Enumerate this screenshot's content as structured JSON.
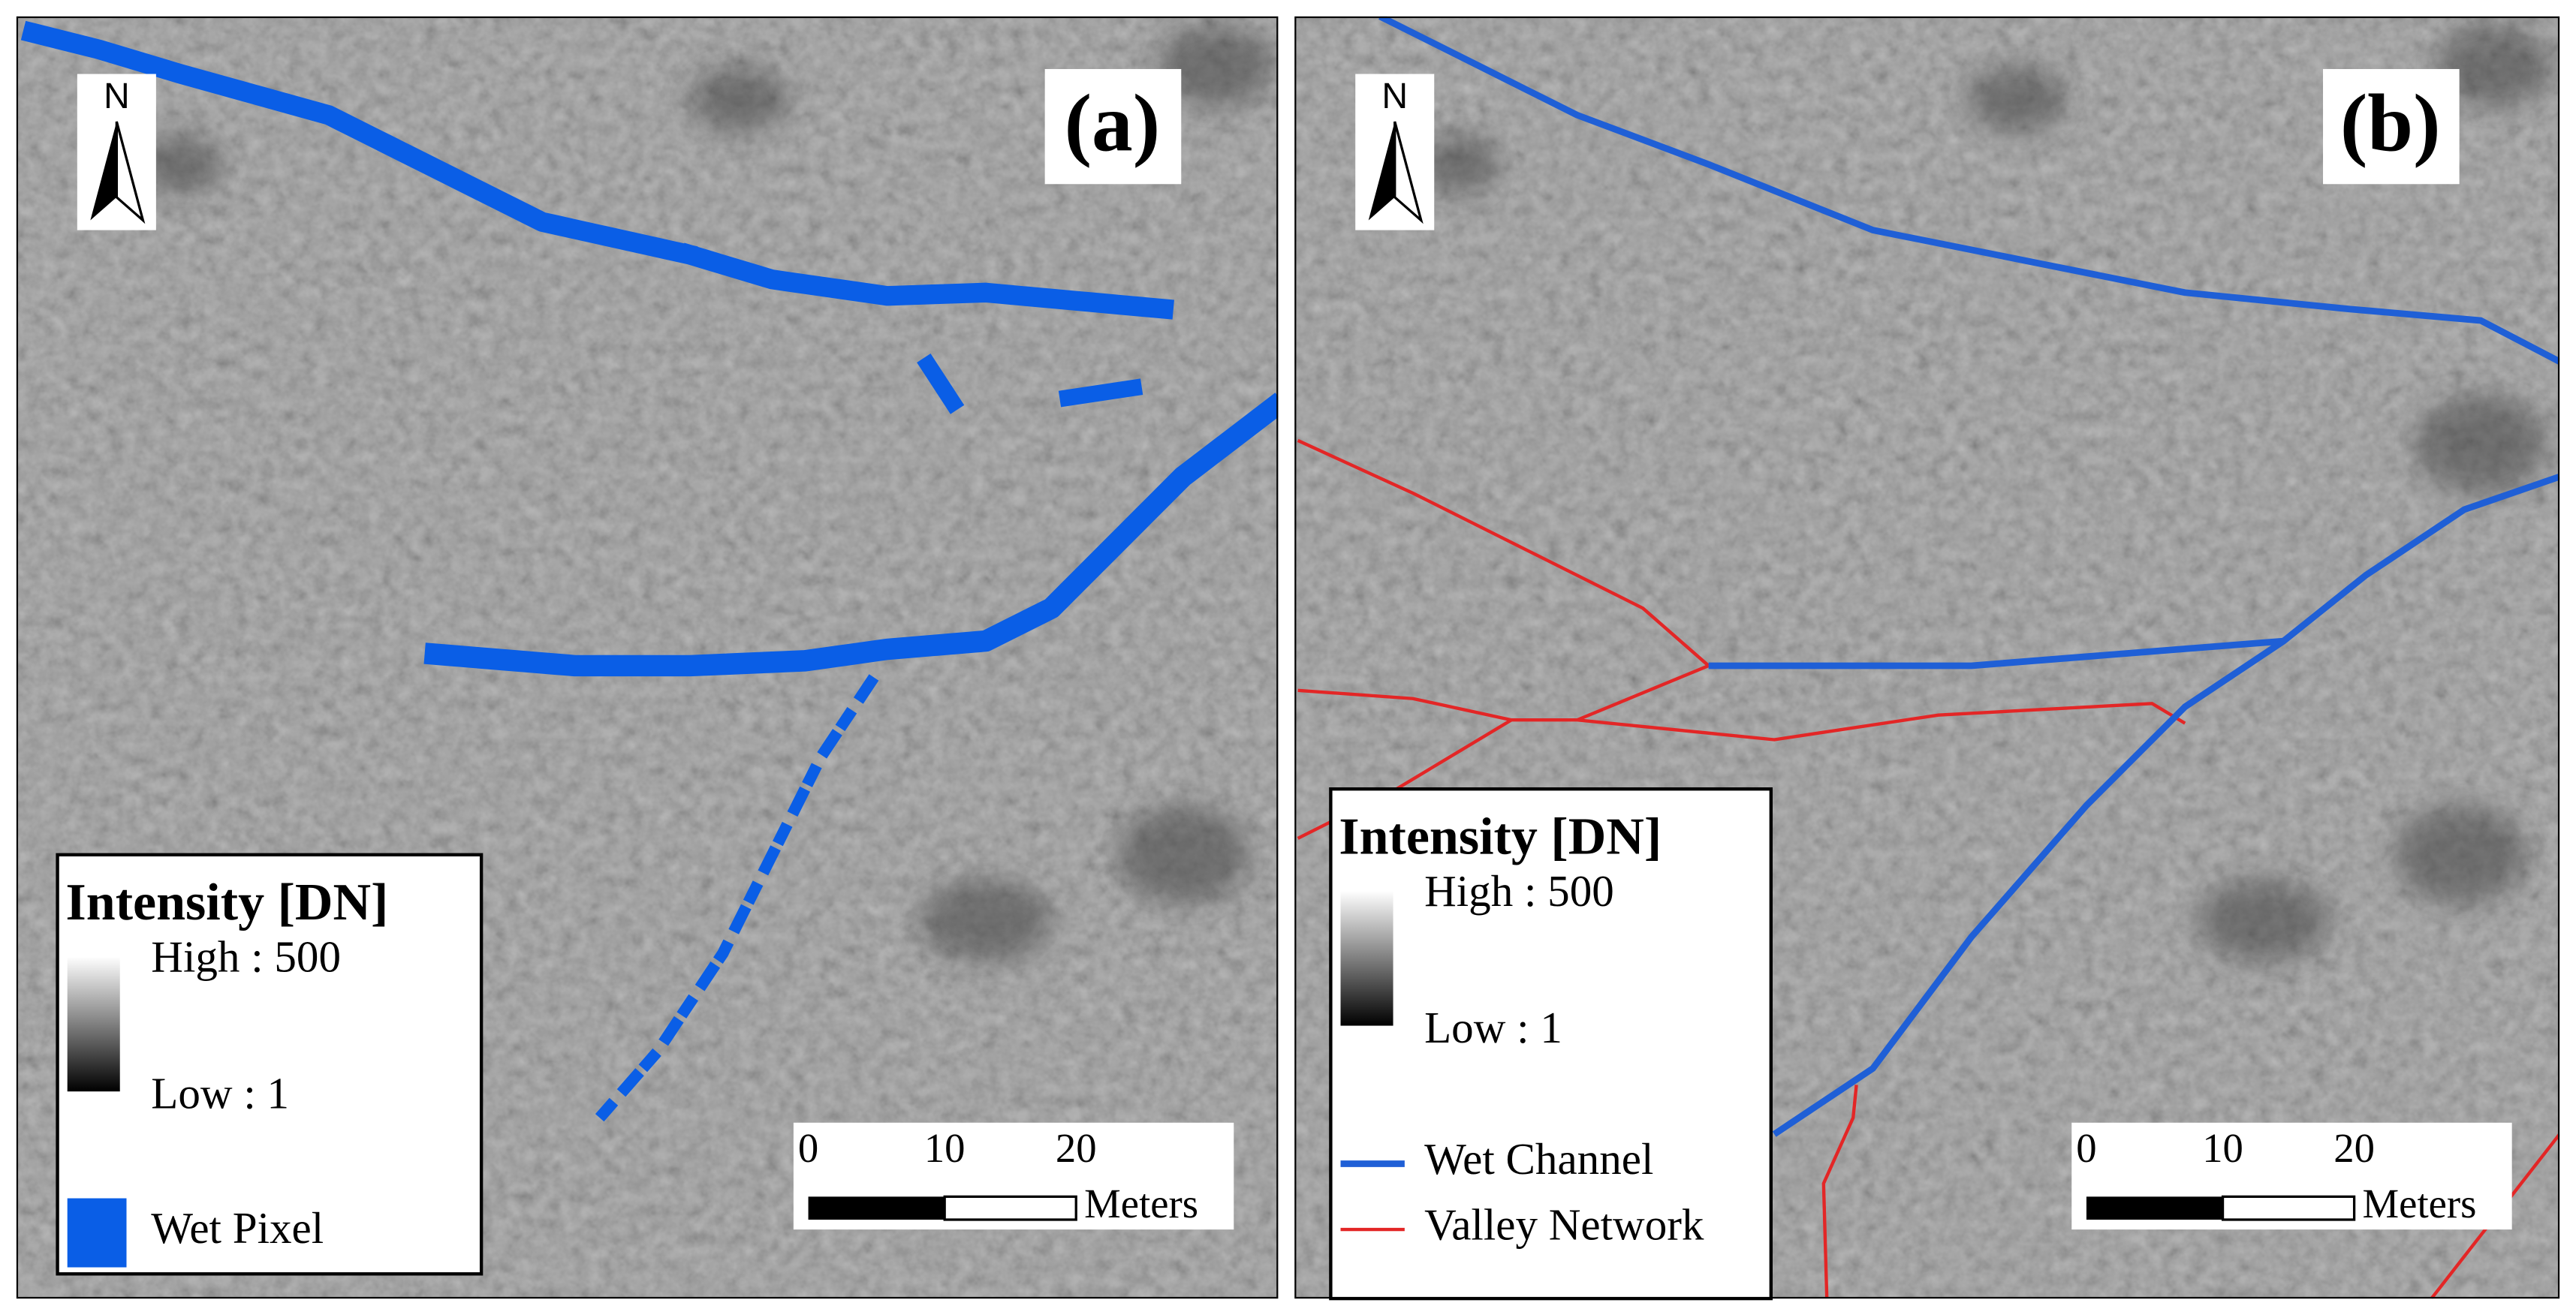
{
  "panels": [
    {
      "label": "(a)",
      "north": "N",
      "legend": {
        "title": "Intensity [DN]",
        "high": "High : 500",
        "low": "Low : 1",
        "items": [
          "Wet Pixel"
        ]
      },
      "scale_bar": {
        "ticks": [
          0,
          10,
          20
        ],
        "unit": "Meters"
      }
    },
    {
      "label": "(b)",
      "north": "N",
      "legend": {
        "title": "Intensity [DN]",
        "high": "High : 500",
        "low": "Low : 1",
        "items": [
          "Wet Channel",
          "Valley Network"
        ]
      },
      "scale_bar": {
        "ticks": [
          0,
          10,
          20
        ],
        "unit": "Meters"
      }
    }
  ]
}
